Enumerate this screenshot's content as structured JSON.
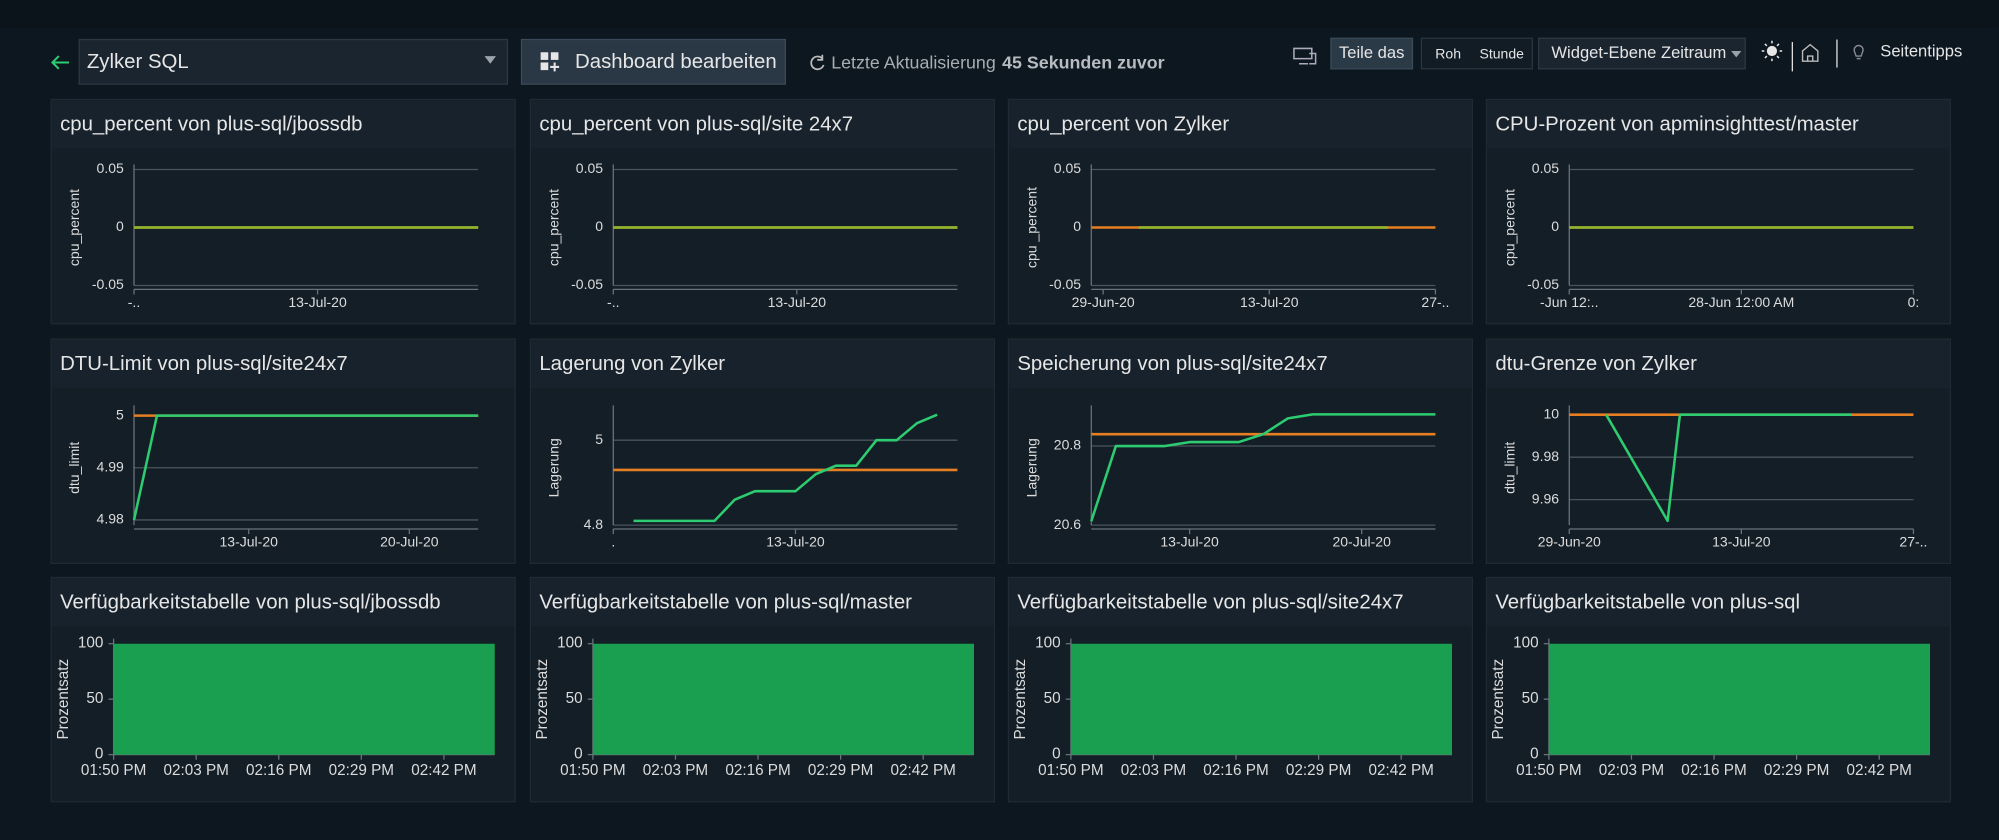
{
  "header": {
    "dashboard_name": "Zylker SQL",
    "edit_button": "Dashboard bearbeiten",
    "refresh_label": "Letzte Aktualisierung",
    "refresh_time": "45 Sekunden zuvor",
    "share_button": "Teile das",
    "view_options": [
      "Roh",
      "Stunde"
    ],
    "period_dropdown": "Widget-Ebene Zeitraum",
    "tips_link": "Seitentipps"
  },
  "chart_data": [
    {
      "type": "line",
      "title": "cpu_percent von plus-sql/jbossdb",
      "y_label": "cpu_percent",
      "ylim": [
        -0.05,
        0.05
      ],
      "yticks": [
        0.05,
        0,
        -0.05
      ],
      "grid": true,
      "xlim": [
        "2020-07-05",
        "2020-07-20"
      ],
      "xticks": [
        {
          "value": "2020-07-05",
          "label": "-.."
        },
        {
          "value": "2020-07-13",
          "label": "13-Jul-20"
        }
      ],
      "series": [
        {
          "color": "#e67e22",
          "x": [
            "2020-07-05",
            "2020-07-20"
          ],
          "values": [
            0,
            0
          ]
        },
        {
          "color": "#8fb82e",
          "x": [
            "2020-07-05",
            "2020-07-20"
          ],
          "values": [
            0,
            0
          ]
        }
      ]
    },
    {
      "type": "line",
      "title": "cpu_percent von plus-sql/site 24x7",
      "y_label": "cpu_percent",
      "ylim": [
        -0.05,
        0.05
      ],
      "yticks": [
        0.05,
        0,
        -0.05
      ],
      "grid": true,
      "xlim": [
        "2020-07-05",
        "2020-07-20"
      ],
      "xticks": [
        {
          "value": "2020-07-05",
          "label": "-.."
        },
        {
          "value": "2020-07-13",
          "label": "13-Jul-20"
        }
      ],
      "series": [
        {
          "color": "#e67e22",
          "x": [
            "2020-07-05",
            "2020-07-20"
          ],
          "values": [
            0,
            0
          ]
        },
        {
          "color": "#8fb82e",
          "x": [
            "2020-07-05",
            "2020-07-20"
          ],
          "values": [
            0,
            0
          ]
        }
      ]
    },
    {
      "type": "line",
      "title": "cpu_percent von Zylker",
      "y_label": "cpu _percent",
      "ylim": [
        -0.05,
        0.05
      ],
      "yticks": [
        0.05,
        0,
        -0.05
      ],
      "grid": true,
      "xlim": [
        "2020-06-28",
        "2020-07-27"
      ],
      "xticks": [
        {
          "value": "2020-06-29",
          "label": "29-Jun-20"
        },
        {
          "value": "2020-07-13",
          "label": "13-Jul-20"
        },
        {
          "value": "2020-07-27",
          "label": "27-.."
        }
      ],
      "series": [
        {
          "color": "#e67e22",
          "x": [
            "2020-06-28",
            "2020-07-27"
          ],
          "values": [
            0,
            0
          ]
        },
        {
          "color": "#8fb82e",
          "x": [
            "2020-07-02",
            "2020-07-23"
          ],
          "values": [
            0,
            0
          ]
        }
      ]
    },
    {
      "type": "line",
      "title": "CPU-Prozent von apminsighttest/master",
      "y_label": "cpu_percent",
      "ylim": [
        -0.05,
        0.05
      ],
      "yticks": [
        0.05,
        0,
        -0.05
      ],
      "grid": true,
      "xlim": [
        "06-27T12:00",
        "06-28T12:00"
      ],
      "xticks": [
        {
          "value": "06-27T12:00",
          "label": "-Jun 12:.."
        },
        {
          "value": "06-28T00:00",
          "label": "28-Jun 12:00 AM"
        },
        {
          "value": "06-28T12:00",
          "label": "0:"
        }
      ],
      "series": [
        {
          "color": "#e67e22",
          "x": [
            "06-27T12:00",
            "06-28T12:00"
          ],
          "values": [
            0,
            0
          ]
        },
        {
          "color": "#8fb82e",
          "x": [
            "06-27T12:00",
            "06-28T12:00"
          ],
          "values": [
            0,
            0
          ]
        }
      ]
    },
    {
      "type": "line",
      "title": "DTU-Limit von plus-sql/site24x7",
      "y_label": "dtu_limit",
      "ylim": [
        4.979,
        5.001
      ],
      "yticks": [
        5,
        4.99,
        4.98
      ],
      "grid": true,
      "xlim": [
        "2020-07-08",
        "2020-07-23"
      ],
      "xticks": [
        {
          "value": "2020-07-13",
          "label": "13-Jul-20"
        },
        {
          "value": "2020-07-20",
          "label": "20-Jul-20"
        }
      ],
      "series": [
        {
          "color": "#e67e22",
          "x": [
            "2020-07-08",
            "2020-07-23"
          ],
          "values": [
            5,
            5
          ]
        },
        {
          "color": "#2ecc71",
          "x": [
            "2020-07-08",
            "2020-07-09",
            "2020-07-23"
          ],
          "values": [
            4.98,
            5,
            5
          ]
        }
      ]
    },
    {
      "type": "line",
      "title": "Lagerung von Zylker",
      "y_label": "Lagerung",
      "ylim": [
        4.8,
        5.07
      ],
      "yticks": [
        5,
        4.8
      ],
      "grid": true,
      "xlim": [
        "2020-07-04",
        "2020-07-21"
      ],
      "xticks": [
        {
          "value": "2020-07-04",
          "label": "."
        },
        {
          "value": "2020-07-13",
          "label": "13-Jul-20"
        }
      ],
      "series": [
        {
          "color": "#e67e22",
          "x": [
            "2020-07-04",
            "2020-07-21"
          ],
          "values": [
            4.93,
            4.93
          ]
        },
        {
          "color": "#2ecc71",
          "x": [
            "2020-07-05",
            "2020-07-09",
            "2020-07-10",
            "2020-07-11",
            "2020-07-13",
            "2020-07-14",
            "2020-07-15",
            "2020-07-16",
            "2020-07-17",
            "2020-07-18",
            "2020-07-19",
            "2020-07-20"
          ],
          "values": [
            4.81,
            4.81,
            4.86,
            4.88,
            4.88,
            4.92,
            4.94,
            4.94,
            5,
            5,
            5.04,
            5.06
          ]
        }
      ]
    },
    {
      "type": "line",
      "title": "Speicherung von plus-sql/site24x7",
      "y_label": "Lagerung",
      "ylim": [
        20.6,
        20.89
      ],
      "yticks": [
        20.8,
        20.6
      ],
      "grid": true,
      "xlim": [
        "2020-07-09",
        "2020-07-23"
      ],
      "xticks": [
        {
          "value": "2020-07-13",
          "label": "13-Jul-20"
        },
        {
          "value": "2020-07-20",
          "label": "20-Jul-20"
        }
      ],
      "series": [
        {
          "color": "#e67e22",
          "x": [
            "2020-07-09",
            "2020-07-23"
          ],
          "values": [
            20.83,
            20.83
          ]
        },
        {
          "color": "#2ecc71",
          "x": [
            "2020-07-09",
            "2020-07-10",
            "2020-07-12",
            "2020-07-13",
            "2020-07-15",
            "2020-07-16",
            "2020-07-17",
            "2020-07-18",
            "2020-07-23"
          ],
          "values": [
            20.61,
            20.8,
            20.8,
            20.81,
            20.81,
            20.83,
            20.87,
            20.88,
            20.88
          ]
        }
      ]
    },
    {
      "type": "line",
      "title": "dtu-Grenze von Zylker",
      "y_label": "dtu_limit",
      "ylim": [
        9.948,
        10.002
      ],
      "yticks": [
        10,
        9.98,
        9.96
      ],
      "grid": true,
      "xlim": [
        "2020-06-29",
        "2020-07-27"
      ],
      "xticks": [
        {
          "value": "2020-06-29",
          "label": "29-Jun-20"
        },
        {
          "value": "2020-07-13",
          "label": "13-Jul-20"
        },
        {
          "value": "2020-07-27",
          "label": "27-.."
        }
      ],
      "series": [
        {
          "color": "#e67e22",
          "x": [
            "2020-06-29",
            "2020-07-27"
          ],
          "values": [
            10,
            10
          ]
        },
        {
          "color": "#2ecc71",
          "x": [
            "2020-07-02",
            "2020-07-07",
            "2020-07-08",
            "2020-07-22"
          ],
          "values": [
            10,
            9.95,
            10,
            10
          ]
        }
      ]
    },
    {
      "type": "area",
      "title": "Verfügbarkeitstabelle von plus-sql/jbossdb",
      "y_label": "Prozentsatz",
      "ylim": [
        0,
        100
      ],
      "yticks": [
        100,
        50,
        0
      ],
      "grid": false,
      "xlim": [
        "13:50",
        "14:50"
      ],
      "xticks": [
        {
          "value": "13:50",
          "label": "01:50 PM"
        },
        {
          "value": "14:03",
          "label": "02:03 PM"
        },
        {
          "value": "14:16",
          "label": "02:16 PM"
        },
        {
          "value": "14:29",
          "label": "02:29 PM"
        },
        {
          "value": "14:42",
          "label": "02:42 PM"
        }
      ],
      "series": [
        {
          "color": "#1a9e50",
          "x": [
            "13:50",
            "14:50"
          ],
          "values": [
            100,
            100
          ]
        }
      ]
    },
    {
      "type": "area",
      "title": "Verfügbarkeitstabelle von plus-sql/master",
      "y_label": "Prozentsatz",
      "ylim": [
        0,
        100
      ],
      "yticks": [
        100,
        50,
        0
      ],
      "grid": false,
      "xlim": [
        "13:50",
        "14:50"
      ],
      "xticks": [
        {
          "value": "13:50",
          "label": "01:50 PM"
        },
        {
          "value": "14:03",
          "label": "02:03 PM"
        },
        {
          "value": "14:16",
          "label": "02:16 PM"
        },
        {
          "value": "14:29",
          "label": "02:29 PM"
        },
        {
          "value": "14:42",
          "label": "02:42 PM"
        }
      ],
      "series": [
        {
          "color": "#1a9e50",
          "x": [
            "13:50",
            "14:50"
          ],
          "values": [
            100,
            100
          ]
        }
      ]
    },
    {
      "type": "area",
      "title": "Verfügbarkeitstabelle von plus-sql/site24x7",
      "y_label": "Prozentsatz",
      "ylim": [
        0,
        100
      ],
      "yticks": [
        100,
        50,
        0
      ],
      "grid": false,
      "xlim": [
        "13:50",
        "14:50"
      ],
      "xticks": [
        {
          "value": "13:50",
          "label": "01:50 PM"
        },
        {
          "value": "14:03",
          "label": "02:03 PM"
        },
        {
          "value": "14:16",
          "label": "02:16 PM"
        },
        {
          "value": "14:29",
          "label": "02:29 PM"
        },
        {
          "value": "14:42",
          "label": "02:42 PM"
        }
      ],
      "series": [
        {
          "color": "#1a9e50",
          "x": [
            "13:50",
            "14:50"
          ],
          "values": [
            100,
            100
          ]
        }
      ]
    },
    {
      "type": "area",
      "title": "Verfügbarkeitstabelle von plus-sql",
      "y_label": "Prozentsatz",
      "ylim": [
        0,
        100
      ],
      "yticks": [
        100,
        50,
        0
      ],
      "grid": false,
      "xlim": [
        "13:50",
        "14:50"
      ],
      "xticks": [
        {
          "value": "13:50",
          "label": "01:50 PM"
        },
        {
          "value": "14:03",
          "label": "02:03 PM"
        },
        {
          "value": "14:16",
          "label": "02:16 PM"
        },
        {
          "value": "14:29",
          "label": "02:29 PM"
        },
        {
          "value": "14:42",
          "label": "02:42 PM"
        }
      ],
      "series": [
        {
          "color": "#1a9e50",
          "x": [
            "13:50",
            "14:50"
          ],
          "values": [
            100,
            100
          ]
        }
      ]
    }
  ]
}
